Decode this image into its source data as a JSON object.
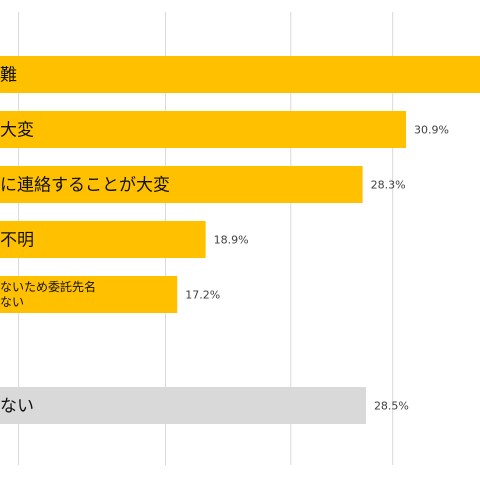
{
  "chart_data": {
    "type": "bar",
    "orientation": "horizontal",
    "title": "",
    "xlabel": "",
    "ylabel": "",
    "grid": true,
    "xlim": [
      0,
      40
    ],
    "colors": {
      "highlight": "#FFC000",
      "neutral": "#D9D9D9",
      "grid": "#D9D9D9"
    },
    "categories": [
      [
        "難"
      ],
      [
        "大変"
      ],
      [
        "に連絡することが大変"
      ],
      [
        "不明"
      ],
      [
        "ないため委託先名",
        "ない"
      ],
      [],
      [
        "ない"
      ]
    ],
    "values": [
      null,
      30.9,
      28.3,
      18.9,
      17.2,
      null,
      28.5
    ],
    "value_labels": [
      "",
      "30.9%",
      "28.3%",
      "18.9%",
      "17.2%",
      "",
      "28.5%"
    ],
    "bar_colors": [
      "highlight",
      "highlight",
      "highlight",
      "highlight",
      "highlight",
      "none",
      "neutral"
    ],
    "note": "First bar extends past the right edge of the visible crop; its value label is not visible."
  }
}
